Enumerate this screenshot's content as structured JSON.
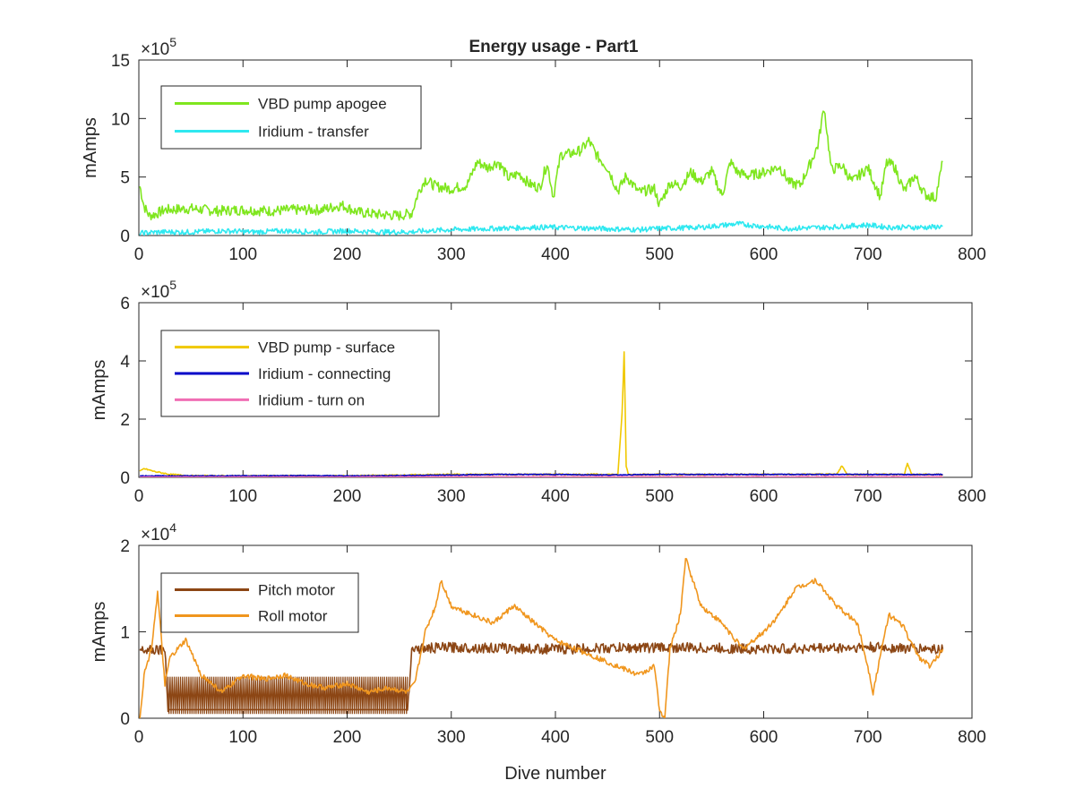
{
  "figure": {
    "title": "Energy usage - Part1",
    "xlabel": "Dive number"
  },
  "chart_data": [
    {
      "type": "line",
      "title": "Energy usage - Part1",
      "xlabel": "",
      "ylabel": "mAmps",
      "exponent_label": "×10",
      "exponent_power": "5",
      "xlim": [
        0,
        800
      ],
      "ylim": [
        0,
        15
      ],
      "xticks": [
        0,
        100,
        200,
        300,
        400,
        500,
        600,
        700,
        800
      ],
      "yticks": [
        0,
        5,
        10,
        15
      ],
      "legend_position": "top-left",
      "grid": false,
      "series": [
        {
          "name": "VBD pump apogee",
          "color": "#7fe61e",
          "x": [
            1,
            5,
            10,
            15,
            25,
            50,
            75,
            100,
            125,
            150,
            175,
            195,
            210,
            230,
            250,
            262,
            268,
            275,
            285,
            300,
            315,
            325,
            335,
            345,
            355,
            365,
            375,
            385,
            392,
            398,
            405,
            415,
            425,
            432,
            440,
            450,
            460,
            468,
            480,
            495,
            500,
            510,
            520,
            530,
            540,
            550,
            560,
            568,
            575,
            585,
            600,
            615,
            625,
            635,
            645,
            652,
            658,
            665,
            675,
            685,
            700,
            712,
            718,
            725,
            735,
            745,
            755,
            765,
            772
          ],
          "y": [
            4.2,
            2.5,
            1.7,
            1.8,
            2.2,
            2.3,
            2.1,
            2.2,
            2.1,
            2.2,
            2.2,
            2.6,
            2.0,
            1.8,
            1.7,
            1.9,
            3.6,
            4.8,
            4.2,
            4.0,
            4.3,
            6.3,
            5.8,
            6.3,
            4.9,
            5.3,
            4.4,
            4.1,
            6.2,
            3.3,
            6.9,
            7.0,
            7.3,
            8.1,
            6.8,
            5.8,
            3.8,
            5.1,
            3.7,
            4.0,
            2.6,
            4.5,
            4.2,
            5.4,
            4.6,
            5.5,
            3.4,
            6.3,
            5.4,
            5.1,
            5.4,
            5.9,
            4.5,
            4.3,
            6.2,
            7.7,
            11.0,
            5.6,
            6.0,
            4.6,
            5.8,
            3.3,
            6.2,
            6.0,
            3.8,
            5.1,
            3.5,
            3.2,
            6.3
          ]
        },
        {
          "name": "Iridium - transfer",
          "color": "#2ee8f0",
          "x": [
            1,
            20,
            50,
            80,
            110,
            140,
            170,
            200,
            230,
            260,
            275,
            300,
            340,
            380,
            400,
            440,
            480,
            500,
            540,
            575,
            620,
            660,
            700,
            720,
            760,
            772
          ],
          "y": [
            0.2,
            0.3,
            0.3,
            0.4,
            0.3,
            0.4,
            0.3,
            0.4,
            0.3,
            0.3,
            0.4,
            0.5,
            0.6,
            0.7,
            0.7,
            0.6,
            0.5,
            0.6,
            0.7,
            1.0,
            0.6,
            0.7,
            0.9,
            0.7,
            0.7,
            0.8
          ]
        }
      ]
    },
    {
      "type": "line",
      "title": "",
      "xlabel": "",
      "ylabel": "mAmps",
      "exponent_label": "×10",
      "exponent_power": "5",
      "xlim": [
        0,
        800
      ],
      "ylim": [
        0,
        6
      ],
      "xticks": [
        0,
        100,
        200,
        300,
        400,
        500,
        600,
        700,
        800
      ],
      "yticks": [
        0,
        2,
        4,
        6
      ],
      "legend_position": "top-left",
      "grid": false,
      "series": [
        {
          "name": "VBD pump - surface",
          "color": "#f0c800",
          "x": [
            1,
            5,
            15,
            30,
            50,
            100,
            200,
            300,
            400,
            460,
            464,
            466,
            468,
            470,
            480,
            600,
            670,
            675,
            680,
            700,
            735,
            738,
            742,
            772
          ],
          "y": [
            0.2,
            0.3,
            0.2,
            0.1,
            0.05,
            0.05,
            0.05,
            0.1,
            0.1,
            0.1,
            2.2,
            4.3,
            0.4,
            0.1,
            0.1,
            0.1,
            0.1,
            0.4,
            0.1,
            0.1,
            0.1,
            0.5,
            0.1,
            0.1
          ]
        },
        {
          "name": "Iridium - connecting",
          "color": "#0000c8",
          "x": [
            1,
            50,
            100,
            150,
            200,
            250,
            300,
            350,
            400,
            450,
            500,
            550,
            600,
            650,
            700,
            750,
            772
          ],
          "y": [
            0.05,
            0.05,
            0.05,
            0.06,
            0.05,
            0.06,
            0.08,
            0.1,
            0.1,
            0.08,
            0.1,
            0.1,
            0.1,
            0.1,
            0.1,
            0.1,
            0.1
          ]
        },
        {
          "name": "Iridium - turn on",
          "color": "#f06eb4",
          "x": [
            1,
            100,
            200,
            300,
            400,
            500,
            600,
            700,
            772
          ],
          "y": [
            0.01,
            0.01,
            0.01,
            0.02,
            0.02,
            0.02,
            0.02,
            0.02,
            0.02
          ]
        }
      ]
    },
    {
      "type": "line",
      "title": "",
      "xlabel": "Dive number",
      "ylabel": "mAmps",
      "exponent_label": "×10",
      "exponent_power": "4",
      "xlim": [
        0,
        800
      ],
      "ylim": [
        0,
        2
      ],
      "xticks": [
        0,
        100,
        200,
        300,
        400,
        500,
        600,
        700,
        800
      ],
      "yticks": [
        0,
        1,
        2
      ],
      "legend_position": "top-left",
      "grid": false,
      "series": [
        {
          "name": "Pitch motor",
          "color": "#8c4614",
          "x": [
            1,
            25,
            28,
            258,
            262,
            300,
            400,
            500,
            600,
            700,
            772
          ],
          "y": [
            0.8,
            0.8,
            0.1,
            0.1,
            0.8,
            0.82,
            0.8,
            0.82,
            0.8,
            0.82,
            0.8
          ],
          "band": {
            "x_start": 28,
            "x_end": 258,
            "low": 0.05,
            "high": 0.48
          }
        },
        {
          "name": "Roll motor",
          "color": "#f0961e",
          "x": [
            1,
            5,
            12,
            18,
            25,
            30,
            45,
            60,
            80,
            100,
            120,
            140,
            160,
            180,
            200,
            220,
            240,
            258,
            265,
            275,
            285,
            290,
            300,
            320,
            340,
            360,
            380,
            400,
            420,
            440,
            460,
            480,
            495,
            500,
            505,
            510,
            520,
            525,
            540,
            560,
            580,
            600,
            615,
            630,
            650,
            670,
            690,
            700,
            705,
            720,
            735,
            740,
            750,
            760,
            772
          ],
          "y": [
            0.0,
            0.5,
            0.8,
            1.45,
            0.4,
            0.7,
            0.9,
            0.5,
            0.3,
            0.5,
            0.45,
            0.5,
            0.4,
            0.35,
            0.4,
            0.3,
            0.35,
            0.3,
            0.4,
            1.0,
            1.3,
            1.6,
            1.3,
            1.2,
            1.1,
            1.3,
            1.1,
            0.9,
            0.8,
            0.7,
            0.6,
            0.5,
            0.6,
            0.1,
            0.0,
            0.8,
            1.2,
            1.85,
            1.3,
            1.1,
            0.8,
            1.0,
            1.2,
            1.5,
            1.6,
            1.3,
            1.1,
            0.6,
            0.3,
            1.2,
            1.05,
            0.9,
            0.7,
            0.6,
            0.8
          ]
        }
      ]
    }
  ]
}
